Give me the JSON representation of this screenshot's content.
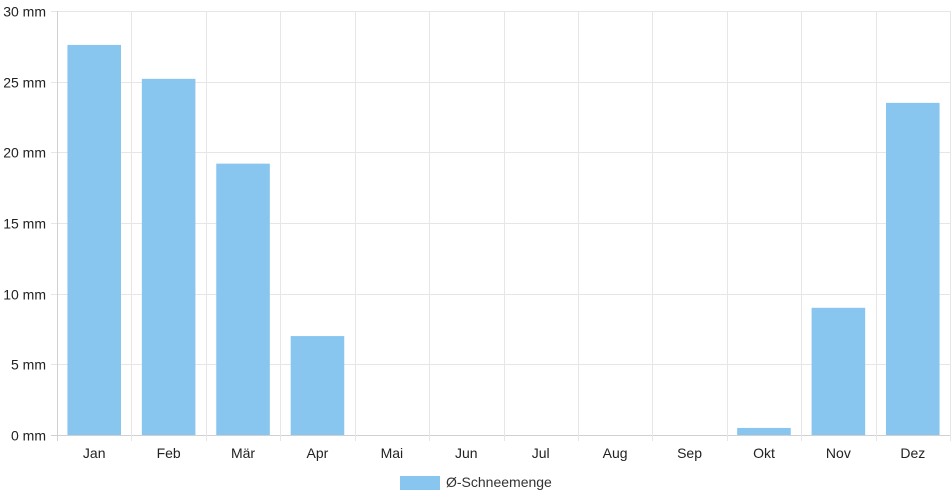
{
  "chart_data": {
    "type": "bar",
    "categories": [
      "Jan",
      "Feb",
      "Mär",
      "Apr",
      "Mai",
      "Jun",
      "Jul",
      "Aug",
      "Sep",
      "Okt",
      "Nov",
      "Dez"
    ],
    "series": [
      {
        "name": "Ø-Schneemenge",
        "values": [
          27.6,
          25.2,
          19.2,
          7.0,
          0,
          0,
          0,
          0,
          0,
          0.5,
          9.0,
          23.5
        ],
        "color": "#88c6f0"
      }
    ],
    "y_unit": "mm",
    "ylim": [
      0,
      30
    ],
    "y_ticks": [
      0,
      5,
      10,
      15,
      20,
      25,
      30
    ],
    "y_tick_labels": [
      "0 mm",
      "5 mm",
      "10 mm",
      "15 mm",
      "20 mm",
      "25 mm",
      "30 mm"
    ],
    "grid": true,
    "legend_position": "bottom-center",
    "colors": {
      "bar": "#88c6f0",
      "grid": "#e6e6e6",
      "axis": "#d0d0d0",
      "text": "#222222"
    }
  }
}
